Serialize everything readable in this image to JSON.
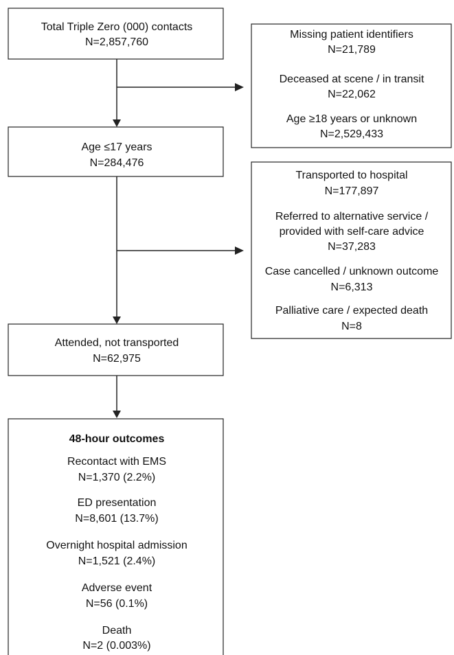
{
  "flow": [
    {
      "lines": [
        "Total Triple Zero (000) contacts",
        "N=2,857,760"
      ]
    },
    {
      "lines": [
        "Age ≤17 years",
        "N=284,476"
      ]
    },
    {
      "lines": [
        "Attended, not transported",
        "N=62,975"
      ]
    }
  ],
  "exclusions": [
    {
      "items": [
        {
          "lines": [
            "Missing patient identifiers",
            "N=21,789"
          ]
        },
        {
          "lines": [
            "Deceased at scene / in transit",
            "N=22,062"
          ]
        },
        {
          "lines": [
            "Age ≥18 years or unknown",
            "N=2,529,433"
          ]
        }
      ]
    },
    {
      "items": [
        {
          "lines": [
            "Transported to hospital",
            "N=177,897"
          ]
        },
        {
          "lines": [
            "Referred to alternative service /",
            "provided with self-care advice",
            "N=37,283"
          ]
        },
        {
          "lines": [
            "Case cancelled / unknown outcome",
            "N=6,313"
          ]
        },
        {
          "lines": [
            "Palliative care / expected death",
            "N=8"
          ]
        }
      ]
    }
  ],
  "outcomes": {
    "title": "48-hour outcomes",
    "items": [
      {
        "lines": [
          "Recontact with EMS",
          "N=1,370 (2.2%)"
        ]
      },
      {
        "lines": [
          "ED presentation",
          "N=8,601 (13.7%)"
        ]
      },
      {
        "lines": [
          "Overnight hospital admission",
          "N=1,521 (2.4%)"
        ]
      },
      {
        "lines": [
          "Adverse event",
          "N=56 (0.1%)"
        ]
      },
      {
        "lines": [
          "Death",
          "N=2 (0.003%)"
        ]
      }
    ]
  }
}
